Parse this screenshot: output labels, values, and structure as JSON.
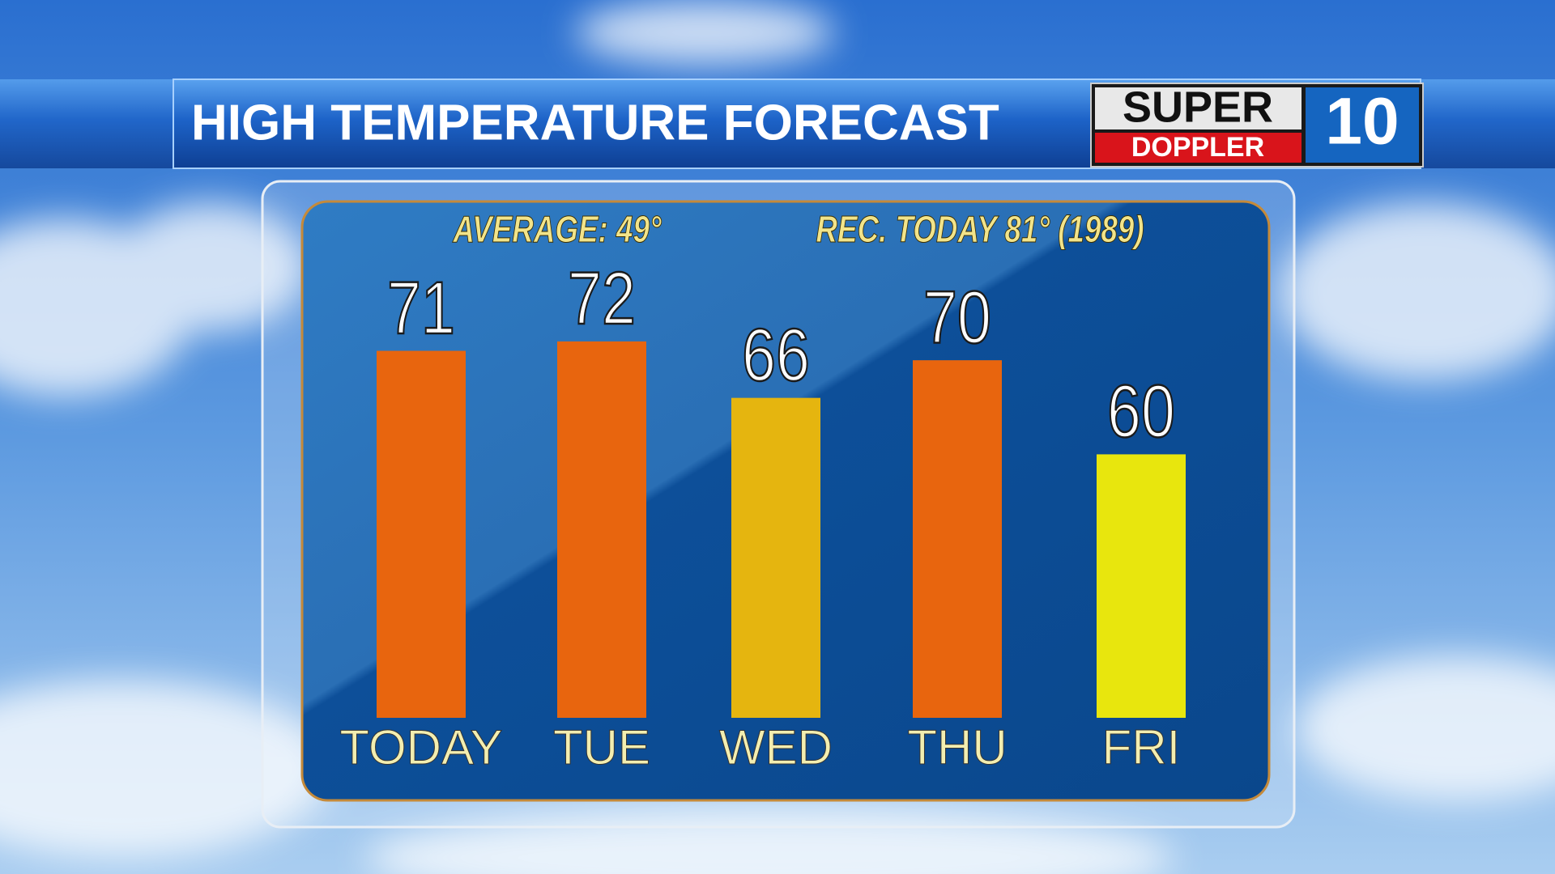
{
  "chart_data": {
    "type": "bar",
    "title": "HIGH TEMPERATURE FORECAST",
    "logo": {
      "top": "SUPER",
      "bottom": "DOPPLER",
      "number": "10"
    },
    "annotations": [
      "AVERAGE: 49°",
      "REC. TODAY 81° (1989)"
    ],
    "categories": [
      "TODAY",
      "TUE",
      "WED",
      "THU",
      "FRI"
    ],
    "values": [
      71,
      72,
      66,
      70,
      60
    ],
    "colors": [
      "#e8650e",
      "#e8650e",
      "#e5b50f",
      "#e8650e",
      "#e8e60d"
    ],
    "ylim": [
      32,
      75
    ]
  }
}
